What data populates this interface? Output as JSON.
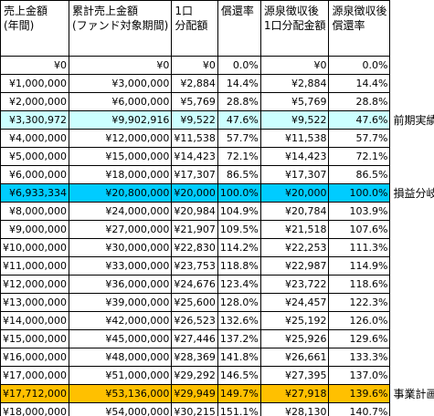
{
  "table": {
    "header": [
      [
        "売上金額",
        "(年間)"
      ],
      [
        "累計売上金額",
        "(ファンド対象期間)"
      ],
      [
        "1口",
        "分配額"
      ],
      [
        "償還率"
      ],
      [
        "源泉徴収後",
        "1口分配金額"
      ],
      [
        "源泉徴収後",
        "償還率"
      ]
    ],
    "rows": [
      {
        "cells": [
          "¥0",
          "¥0",
          "¥0",
          "0.0%",
          "¥0",
          "0.0%"
        ]
      },
      {
        "cells": [
          "¥1,000,000",
          "¥3,000,000",
          "¥2,884",
          "14.4%",
          "¥2,884",
          "14.4%"
        ]
      },
      {
        "cells": [
          "¥2,000,000",
          "¥6,000,000",
          "¥5,769",
          "28.8%",
          "¥5,769",
          "28.8%"
        ]
      },
      {
        "cells": [
          "¥3,300,972",
          "¥9,902,916",
          "¥9,522",
          "47.6%",
          "¥9,522",
          "47.6%"
        ],
        "note": "前期実績",
        "color": "#ccffff"
      },
      {
        "cells": [
          "¥4,000,000",
          "¥12,000,000",
          "¥11,538",
          "57.7%",
          "¥11,538",
          "57.7%"
        ]
      },
      {
        "cells": [
          "¥5,000,000",
          "¥15,000,000",
          "¥14,423",
          "72.1%",
          "¥14,423",
          "72.1%"
        ]
      },
      {
        "cells": [
          "¥6,000,000",
          "¥18,000,000",
          "¥17,307",
          "86.5%",
          "¥17,307",
          "86.5%"
        ]
      },
      {
        "cells": [
          "¥6,933,334",
          "¥20,800,000",
          "¥20,000",
          "100.0%",
          "¥20,000",
          "100.0%"
        ],
        "note": "損益分岐",
        "color": "#00ccff"
      },
      {
        "cells": [
          "¥8,000,000",
          "¥24,000,000",
          "¥20,984",
          "104.9%",
          "¥20,784",
          "103.9%"
        ]
      },
      {
        "cells": [
          "¥9,000,000",
          "¥27,000,000",
          "¥21,907",
          "109.5%",
          "¥21,518",
          "107.6%"
        ]
      },
      {
        "cells": [
          "¥10,000,000",
          "¥30,000,000",
          "¥22,830",
          "114.2%",
          "¥22,253",
          "111.3%"
        ]
      },
      {
        "cells": [
          "¥11,000,000",
          "¥33,000,000",
          "¥23,753",
          "118.8%",
          "¥22,987",
          "114.9%"
        ]
      },
      {
        "cells": [
          "¥12,000,000",
          "¥36,000,000",
          "¥24,676",
          "123.4%",
          "¥23,722",
          "118.6%"
        ]
      },
      {
        "cells": [
          "¥13,000,000",
          "¥39,000,000",
          "¥25,600",
          "128.0%",
          "¥24,457",
          "122.3%"
        ]
      },
      {
        "cells": [
          "¥14,000,000",
          "¥42,000,000",
          "¥26,523",
          "132.6%",
          "¥25,192",
          "126.0%"
        ]
      },
      {
        "cells": [
          "¥15,000,000",
          "¥45,000,000",
          "¥27,446",
          "137.2%",
          "¥25,926",
          "129.6%"
        ]
      },
      {
        "cells": [
          "¥16,000,000",
          "¥48,000,000",
          "¥28,369",
          "141.8%",
          "¥26,661",
          "133.3%"
        ]
      },
      {
        "cells": [
          "¥17,000,000",
          "¥51,000,000",
          "¥29,292",
          "146.5%",
          "¥27,395",
          "137.0%"
        ]
      },
      {
        "cells": [
          "¥17,712,000",
          "¥53,136,000",
          "¥29,949",
          "149.7%",
          "¥27,918",
          "139.6%"
        ],
        "note": "事業計画",
        "color": "#ffc000"
      },
      {
        "cells": [
          "¥18,000,000",
          "¥54,000,000",
          "¥30,215",
          "151.1%",
          "¥28,130",
          "140.7%"
        ]
      }
    ]
  }
}
